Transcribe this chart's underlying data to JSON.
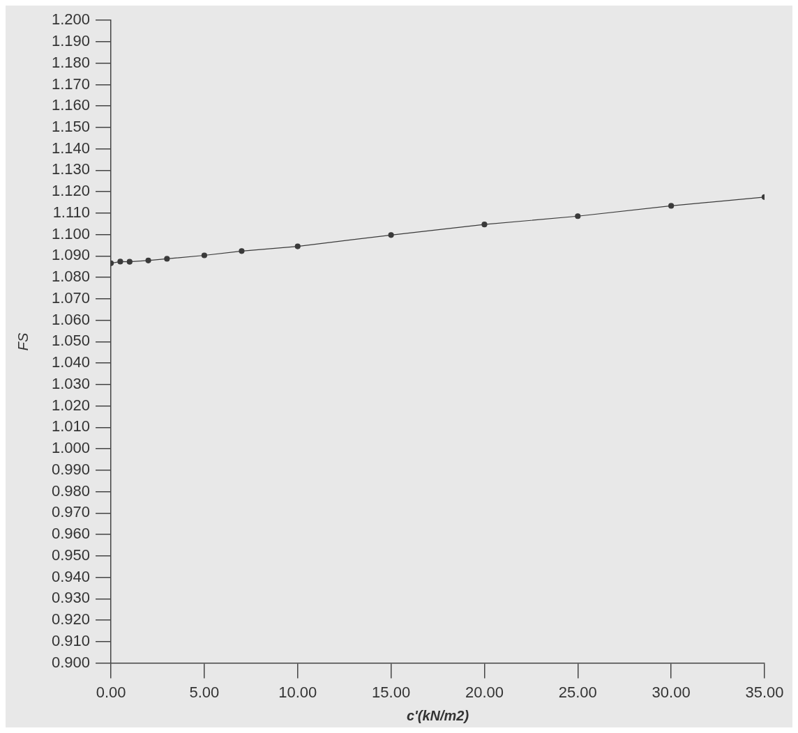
{
  "chart_data": {
    "type": "line",
    "xlabel": "c'(kN/m2)",
    "ylabel": "FS",
    "x": [
      0,
      0.5,
      1,
      2,
      3,
      5,
      7,
      10,
      15,
      20,
      25,
      30,
      35
    ],
    "values": [
      1.0866,
      1.0874,
      1.0873,
      1.0879,
      1.0887,
      1.0903,
      1.0923,
      1.0945,
      1.0998,
      1.1047,
      1.1086,
      1.1134,
      1.1175
    ],
    "color": "#3a3a3a",
    "marker": "circle",
    "line_style": "solid",
    "xlim": [
      0,
      35
    ],
    "ylim": [
      0.9,
      1.2
    ],
    "xticks": [
      {
        "value": 0,
        "label": "0.00"
      },
      {
        "value": 5,
        "label": "5.00"
      },
      {
        "value": 10,
        "label": "10.00"
      },
      {
        "value": 15,
        "label": "15.00"
      },
      {
        "value": 20,
        "label": "20.00"
      },
      {
        "value": 25,
        "label": "25.00"
      },
      {
        "value": 30,
        "label": "30.00"
      },
      {
        "value": 35,
        "label": "35.00"
      }
    ],
    "yticks": [
      {
        "value": 0.9,
        "label": "0.900"
      },
      {
        "value": 0.91,
        "label": "0.910"
      },
      {
        "value": 0.92,
        "label": "0.920"
      },
      {
        "value": 0.93,
        "label": "0.930"
      },
      {
        "value": 0.94,
        "label": "0.940"
      },
      {
        "value": 0.95,
        "label": "0.950"
      },
      {
        "value": 0.96,
        "label": "0.960"
      },
      {
        "value": 0.97,
        "label": "0.970"
      },
      {
        "value": 0.98,
        "label": "0.980"
      },
      {
        "value": 0.99,
        "label": "0.990"
      },
      {
        "value": 1.0,
        "label": "1.000"
      },
      {
        "value": 1.01,
        "label": "1.010"
      },
      {
        "value": 1.02,
        "label": "1.020"
      },
      {
        "value": 1.03,
        "label": "1.030"
      },
      {
        "value": 1.04,
        "label": "1.040"
      },
      {
        "value": 1.05,
        "label": "1.050"
      },
      {
        "value": 1.06,
        "label": "1.060"
      },
      {
        "value": 1.07,
        "label": "1.070"
      },
      {
        "value": 1.08,
        "label": "1.080"
      },
      {
        "value": 1.09,
        "label": "1.090"
      },
      {
        "value": 1.1,
        "label": "1.100"
      },
      {
        "value": 1.11,
        "label": "1.110"
      },
      {
        "value": 1.12,
        "label": "1.120"
      },
      {
        "value": 1.13,
        "label": "1.130"
      },
      {
        "value": 1.14,
        "label": "1.140"
      },
      {
        "value": 1.15,
        "label": "1.150"
      },
      {
        "value": 1.16,
        "label": "1.160"
      },
      {
        "value": 1.17,
        "label": "1.170"
      },
      {
        "value": 1.18,
        "label": "1.180"
      },
      {
        "value": 1.19,
        "label": "1.190"
      },
      {
        "value": 1.2,
        "label": "1.200"
      }
    ]
  }
}
